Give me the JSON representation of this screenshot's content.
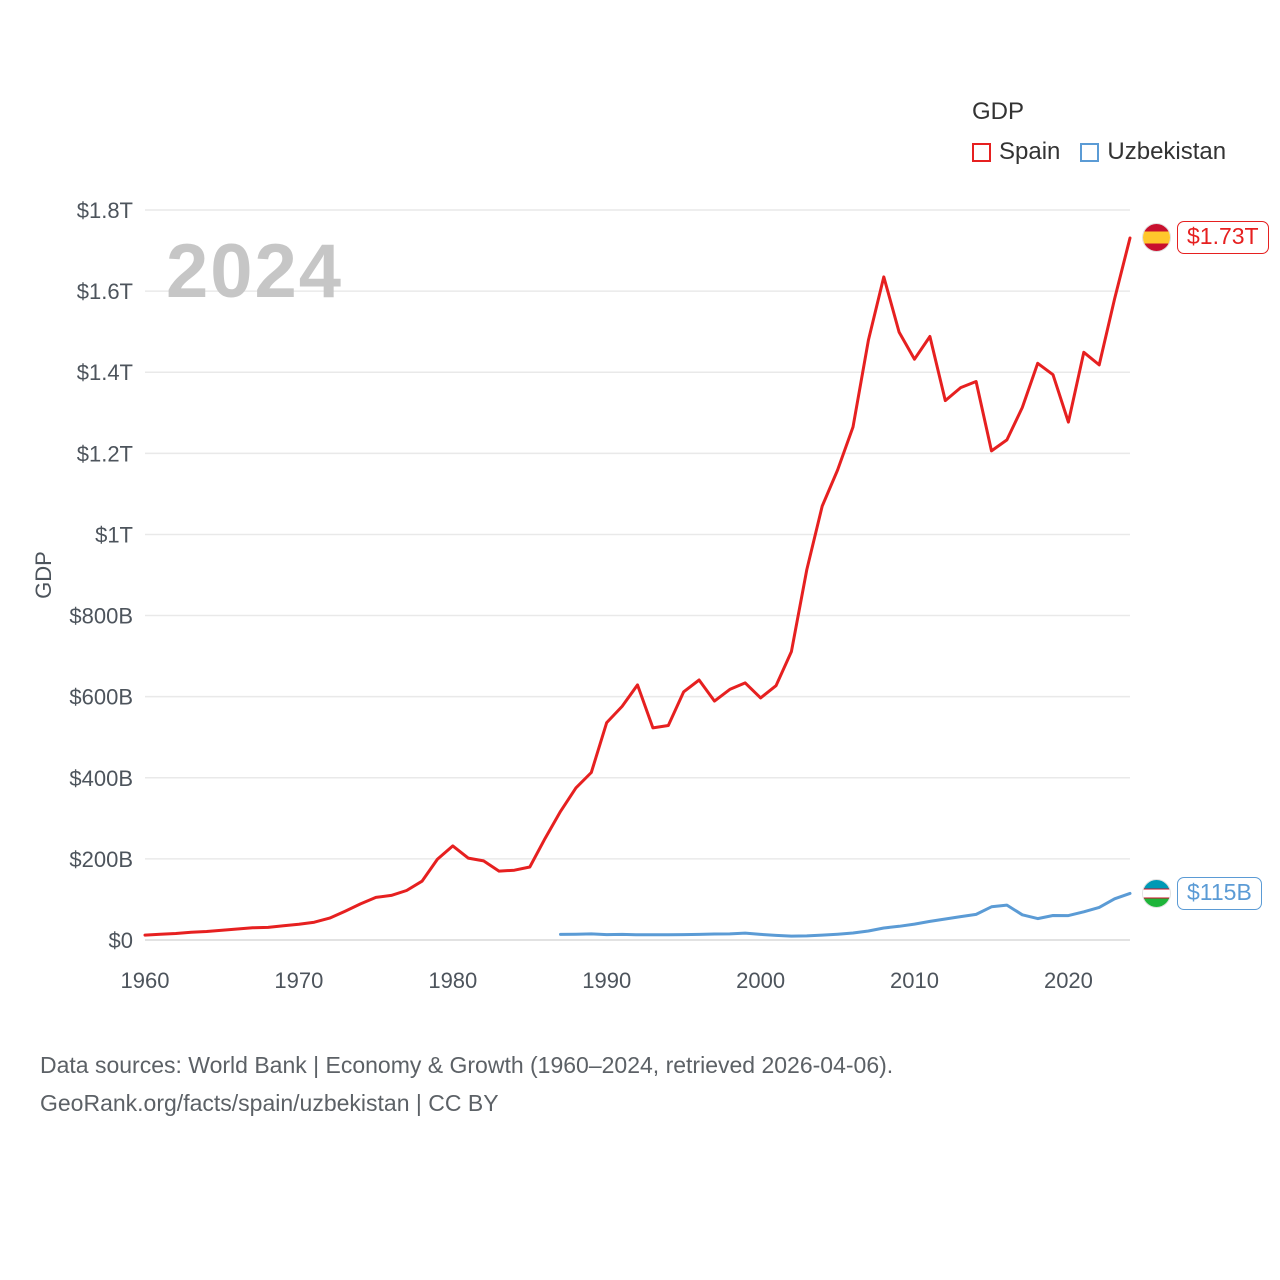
{
  "watermark": {
    "year": "2024"
  },
  "legend": {
    "title": "GDP",
    "items": [
      {
        "label": "Spain",
        "color": "#e62020"
      },
      {
        "label": "Uzbekistan",
        "color": "#5b9bd5"
      }
    ]
  },
  "footer": {
    "line1": "Data sources: World Bank | Economy & Growth (1960–2024, retrieved 2026-04-06).",
    "line2": "GeoRank.org/facts/spain/uzbekistan | CC BY"
  },
  "chart_data": {
    "type": "line",
    "title": "GDP",
    "xlabel": "",
    "ylabel": "GDP",
    "unit": "USD",
    "grid": "horizontal",
    "legend_position": "top-right",
    "x_range": [
      1960,
      2024
    ],
    "ylim_billions": [
      0,
      1800
    ],
    "x_ticks": [
      1960,
      1970,
      1980,
      1990,
      2000,
      2010,
      2020
    ],
    "y_ticks_billions": [
      0,
      200,
      400,
      600,
      800,
      1000,
      1200,
      1400,
      1600,
      1800
    ],
    "y_tick_labels": [
      "$0",
      "$200B",
      "$400B",
      "$600B",
      "$800B",
      "$1T",
      "$1.2T",
      "$1.4T",
      "$1.6T",
      "$1.8T"
    ],
    "series": [
      {
        "name": "Spain",
        "color": "#e62020",
        "end_label": "$1.73T",
        "flag": "spain-flag",
        "years": [
          1960,
          1961,
          1962,
          1963,
          1964,
          1965,
          1966,
          1967,
          1968,
          1969,
          1970,
          1971,
          1972,
          1973,
          1974,
          1975,
          1976,
          1977,
          1978,
          1979,
          1980,
          1981,
          1982,
          1983,
          1984,
          1985,
          1986,
          1987,
          1988,
          1989,
          1990,
          1991,
          1992,
          1993,
          1994,
          1995,
          1996,
          1997,
          1998,
          1999,
          2000,
          2001,
          2002,
          2003,
          2004,
          2005,
          2006,
          2007,
          2008,
          2009,
          2010,
          2011,
          2012,
          2013,
          2014,
          2015,
          2016,
          2017,
          2018,
          2019,
          2020,
          2021,
          2022,
          2023,
          2024
        ],
        "values_billions_usd": [
          12,
          14,
          16,
          19,
          21,
          24,
          27,
          30,
          31,
          35,
          39,
          44,
          54,
          71,
          89,
          105,
          110,
          122,
          145,
          199,
          232,
          202,
          195,
          170,
          172,
          180,
          251,
          317,
          375,
          413,
          536,
          576,
          629,
          523,
          529,
          612,
          641,
          589,
          618,
          634,
          597,
          627,
          711,
          913,
          1070,
          1159,
          1265,
          1479,
          1635,
          1499,
          1432,
          1488,
          1330,
          1362,
          1377,
          1206,
          1233,
          1313,
          1422,
          1394,
          1277,
          1449,
          1418,
          1581,
          1731
        ]
      },
      {
        "name": "Uzbekistan",
        "color": "#5b9bd5",
        "end_label": "$115B",
        "flag": "uzbekistan-flag",
        "years": [
          1987,
          1988,
          1989,
          1990,
          1991,
          1992,
          1993,
          1994,
          1995,
          1996,
          1997,
          1998,
          1999,
          2000,
          2001,
          2002,
          2003,
          2004,
          2005,
          2006,
          2007,
          2008,
          2009,
          2010,
          2011,
          2012,
          2013,
          2014,
          2015,
          2016,
          2017,
          2018,
          2019,
          2020,
          2021,
          2022,
          2023,
          2024
        ],
        "values_billions_usd": [
          13.7,
          14.2,
          15.1,
          13.4,
          13.8,
          12.9,
          13.1,
          12.9,
          13.4,
          13.9,
          14.7,
          15,
          17.1,
          13.8,
          11.4,
          9.7,
          10.1,
          12,
          14.3,
          17.3,
          22.3,
          29.5,
          33.7,
          39.3,
          45.9,
          51.8,
          57.7,
          63.1,
          81.8,
          86.1,
          62.1,
          52.7,
          60.3,
          60.2,
          69.6,
          80.4,
          101.6,
          115
        ]
      }
    ]
  }
}
